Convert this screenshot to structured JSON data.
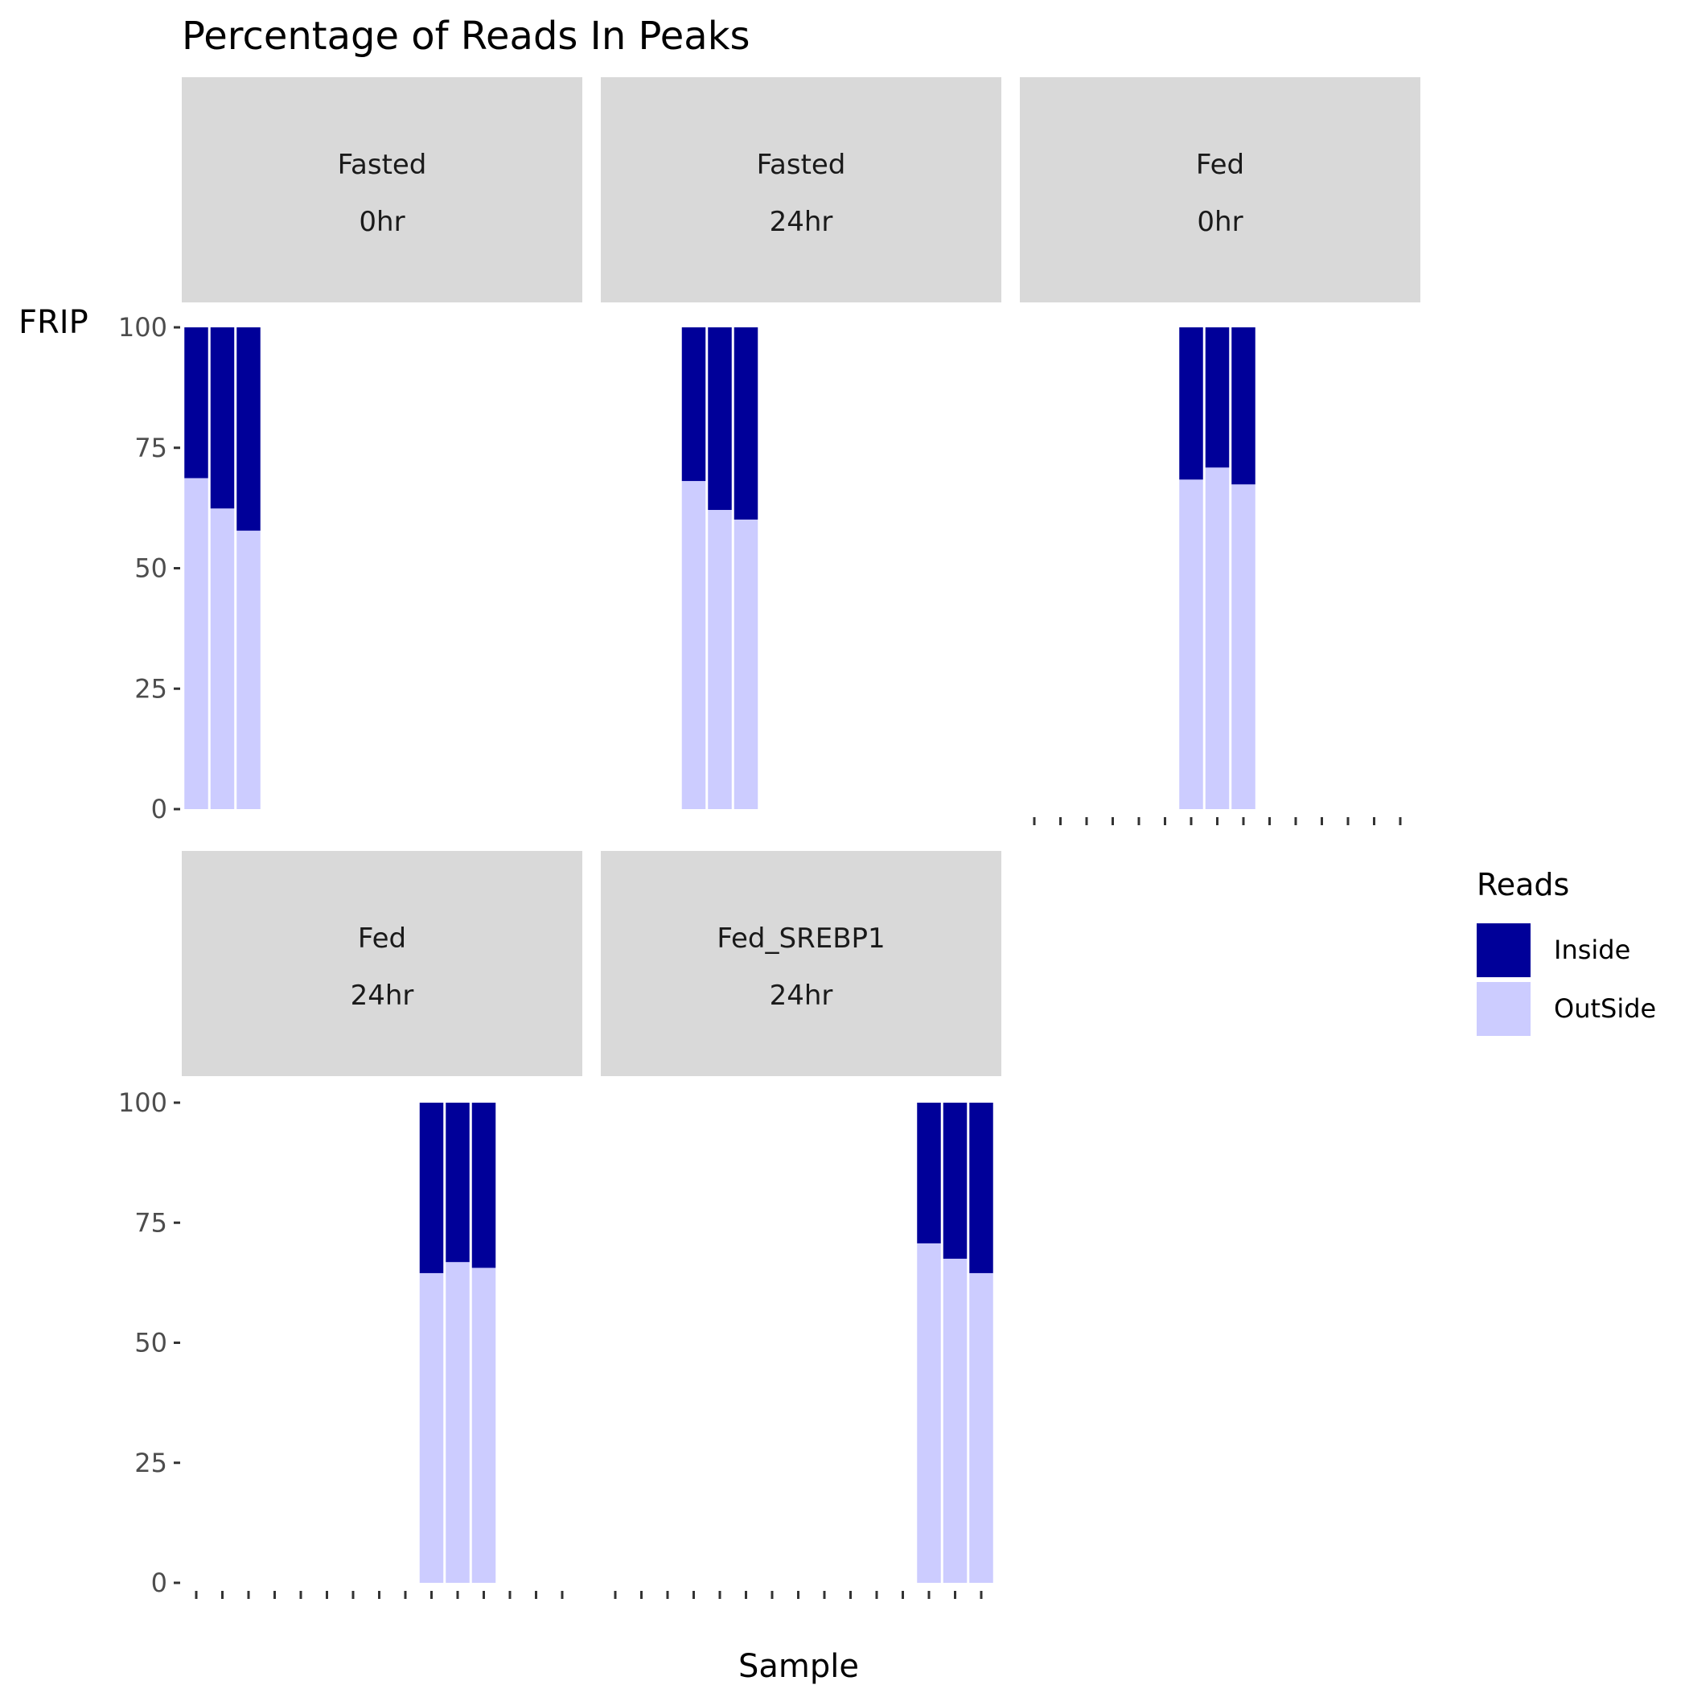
{
  "chart_data": {
    "type": "bar",
    "stacked": true,
    "title": "Percentage of Reads In Peaks",
    "xlabel": "Sample",
    "ylabel": "FRIP",
    "ylim": [
      0,
      100
    ],
    "yticks": [
      0,
      25,
      50,
      75,
      100
    ],
    "grid": false,
    "legend": {
      "title": "Reads",
      "position": "right",
      "entries": [
        {
          "label": "Inside",
          "color": "#000099"
        },
        {
          "label": "OutSide",
          "color": "#ccccff"
        }
      ]
    },
    "panels": [
      {
        "strip": [
          "Fasted",
          "0hr"
        ],
        "slot_start": 0,
        "outside": [
          68.7,
          62.4,
          57.8
        ]
      },
      {
        "strip": [
          "Fasted",
          "24hr"
        ],
        "slot_start": 3,
        "outside": [
          68.1,
          62.1,
          60.1
        ]
      },
      {
        "strip": [
          "Fed",
          "0hr"
        ],
        "slot_start": 6,
        "outside": [
          68.4,
          70.9,
          67.4
        ]
      },
      {
        "strip": [
          "Fed",
          "24hr"
        ],
        "slot_start": 9,
        "outside": [
          64.5,
          66.8,
          65.6
        ]
      },
      {
        "strip": [
          "Fed_SREBP1",
          "24hr"
        ],
        "slot_start": 12,
        "outside": [
          70.7,
          67.5,
          64.5
        ]
      }
    ],
    "inside_total": 100,
    "x_tick_count": 15
  },
  "colors": {
    "inside": "#000099",
    "outside": "#ccccff",
    "strip_bg": "#d9d9d9",
    "axis": "#333333"
  }
}
